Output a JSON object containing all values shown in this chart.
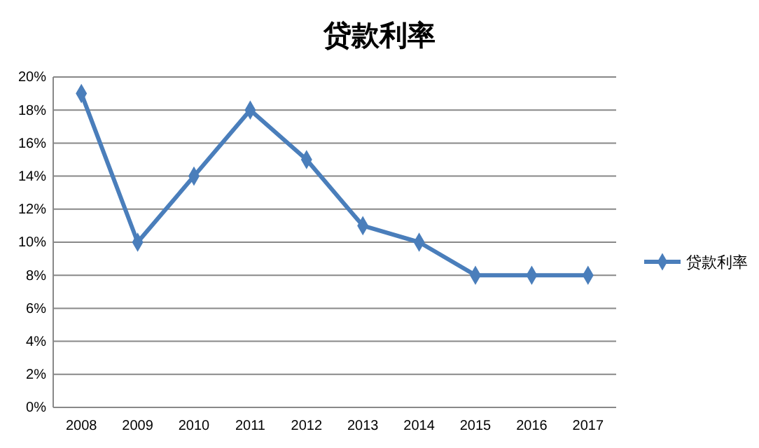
{
  "chart_data": {
    "type": "line",
    "title": "贷款利率",
    "categories": [
      "2008",
      "2009",
      "2010",
      "2011",
      "2012",
      "2013",
      "2014",
      "2015",
      "2016",
      "2017"
    ],
    "series": [
      {
        "name": "贷款利率",
        "color": "#4a7ebb",
        "values": [
          19,
          10,
          14,
          18,
          15,
          11,
          10,
          8,
          8,
          8
        ]
      }
    ],
    "ylim": [
      0,
      20
    ],
    "yticks": [
      {
        "value": 0,
        "label": "0%"
      },
      {
        "value": 2,
        "label": "2%"
      },
      {
        "value": 4,
        "label": "4%"
      },
      {
        "value": 6,
        "label": "6%"
      },
      {
        "value": 8,
        "label": "8%"
      },
      {
        "value": 10,
        "label": "10%"
      },
      {
        "value": 12,
        "label": "12%"
      },
      {
        "value": 14,
        "label": "14%"
      },
      {
        "value": 16,
        "label": "16%"
      },
      {
        "value": 18,
        "label": "18%"
      },
      {
        "value": 20,
        "label": "20%"
      }
    ],
    "grid": "y",
    "legend": "right",
    "marker": "diamond",
    "line_style": "solid"
  }
}
